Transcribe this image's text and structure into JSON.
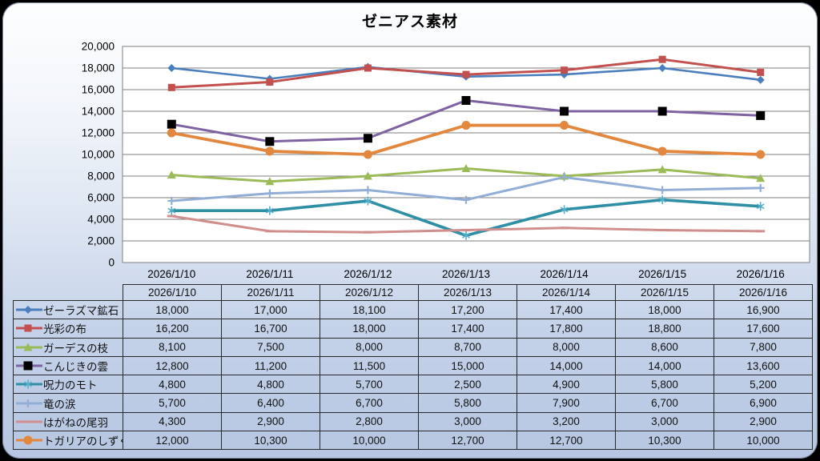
{
  "chart_data": {
    "type": "line",
    "title": "ゼニアス素材",
    "categories": [
      "2026/1/10",
      "2026/1/11",
      "2026/1/12",
      "2026/1/13",
      "2026/1/14",
      "2026/1/15",
      "2026/1/16"
    ],
    "series": [
      {
        "name": "ゼーラズマ鉱石",
        "color": "#4A7EBD",
        "marker": "diamond",
        "marker_color": "#4A7EBD",
        "line_width": 2.6,
        "values": [
          18000,
          17000,
          18100,
          17200,
          17400,
          18000,
          16900
        ]
      },
      {
        "name": "光彩の布",
        "color": "#C2504E",
        "marker": "square",
        "marker_color": "#C2504E",
        "line_width": 3.0,
        "values": [
          16200,
          16700,
          18000,
          17400,
          17800,
          18800,
          17600
        ]
      },
      {
        "name": "ガーデスの枝",
        "color": "#9BBB59",
        "marker": "triangle",
        "marker_color": "#9BBB59",
        "line_width": 3.0,
        "values": [
          8100,
          7500,
          8000,
          8700,
          8000,
          8600,
          7800
        ]
      },
      {
        "name": "こんじきの雲",
        "color": "#7E62A1",
        "marker": "square-black",
        "marker_color": "#000000",
        "line_width": 3.0,
        "values": [
          12800,
          11200,
          11500,
          15000,
          14000,
          14000,
          13600
        ]
      },
      {
        "name": "呪力のモト",
        "color": "#2E8FA5",
        "marker": "asterisk",
        "marker_color": "#55AFC9",
        "line_width": 3.6,
        "values": [
          4800,
          4800,
          5700,
          2500,
          4900,
          5800,
          5200
        ]
      },
      {
        "name": "竜の涙",
        "color": "#93AED6",
        "marker": "plus",
        "marker_color": "#93AED6",
        "line_width": 3.0,
        "values": [
          5700,
          6400,
          6700,
          5800,
          7900,
          6700,
          6900
        ]
      },
      {
        "name": "はがねの尾羽",
        "color": "#D08F8D",
        "marker": "dash",
        "marker_color": "#D08F8D",
        "line_width": 3.0,
        "values": [
          4300,
          2900,
          2800,
          3000,
          3200,
          3000,
          2900
        ]
      },
      {
        "name": "トガリアのしずく",
        "color": "#E2873D",
        "marker": "circle",
        "marker_color": "#E2873D",
        "line_width": 3.8,
        "values": [
          12000,
          10300,
          10000,
          12700,
          12700,
          10300,
          10000
        ]
      }
    ],
    "ylim": [
      0,
      20000
    ],
    "ytick_step": 2000,
    "grid": true,
    "legend_position": "table-left-column",
    "plot_bg_color": "#FFFFFF",
    "grid_color": "#7F7F7F",
    "axis_text_color": "#000000"
  }
}
